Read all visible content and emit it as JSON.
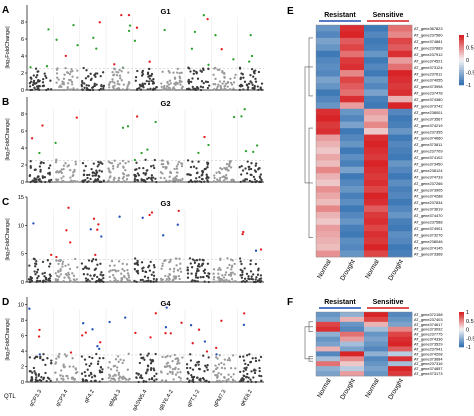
{
  "panels_left": [
    {
      "letter": "A",
      "group": "G1",
      "ylabel": "|log₂FoldChange|",
      "ymax": 10,
      "ticks": [
        0,
        2,
        4,
        6,
        8
      ],
      "seed": 11,
      "thresh": 2.5,
      "tall_mode": "green"
    },
    {
      "letter": "B",
      "group": "G2",
      "ylabel": "|log₂FoldChange|",
      "ymax": 10,
      "ticks": [
        0,
        2,
        4,
        6,
        8
      ],
      "seed": 23,
      "thresh": 2.5,
      "tall_mode": "green"
    },
    {
      "letter": "C",
      "group": "G3",
      "ylabel": "|log₂FoldChange|",
      "ymax": 15,
      "ticks": [
        0,
        5,
        10,
        15
      ],
      "seed": 37,
      "thresh": 4,
      "tall_mode": "blue"
    },
    {
      "letter": "D",
      "group": "G4",
      "ylabel": "|log₂FoldChange|",
      "ymax": 11,
      "ticks": [
        0,
        2,
        4,
        6,
        8,
        10
      ],
      "seed": 51,
      "thresh": 3.5,
      "tall_mode": "blue"
    }
  ],
  "qtl_axis_label": "QTL",
  "qtls": [
    "qCP3.3",
    "qCP3.4",
    "qF4.2",
    "qMg4.3",
    "qASW5.4",
    "qBY6.4-2",
    "qPT.1-2",
    "qPM7.3",
    "qKE8.2"
  ],
  "colors": {
    "dark_point": "#3a3a3a",
    "light_point": "#9a9a9a",
    "green": "#2ca02c",
    "red": "#e41a1c",
    "blue": "#1f4fb5",
    "heat_low": "#2b6cb0",
    "heat_mid": "#f4f4f4",
    "heat_high": "#d7191c",
    "resistant_bar": "#1f4fb5",
    "sensitive_bar": "#d7191c"
  },
  "heatmap_E": {
    "letter": "E",
    "group_labels": [
      "Resistant",
      "Sensitive"
    ],
    "col_labels": [
      "Normal",
      "Drought",
      "Normal",
      "Drought"
    ],
    "scale_ticks": [
      "1",
      "0.5",
      "0",
      "-0.5",
      "-1"
    ],
    "rows": [
      {
        "id": "AT_gene367823",
        "v": [
          -0.7,
          0.9,
          -0.9,
          0.6
        ]
      },
      {
        "id": "AT_gene237560",
        "v": [
          -0.8,
          0.95,
          -0.8,
          0.5
        ]
      },
      {
        "id": "AT_gene374881",
        "v": [
          -0.6,
          0.7,
          -0.9,
          0.8
        ]
      },
      {
        "id": "AT_gene237889",
        "v": [
          -0.7,
          0.8,
          -0.85,
          0.7
        ]
      },
      {
        "id": "AT_gene237912",
        "v": [
          -0.9,
          0.6,
          -0.7,
          0.9
        ]
      },
      {
        "id": "AT_gene374521",
        "v": [
          -0.8,
          0.85,
          -0.9,
          0.4
        ]
      },
      {
        "id": "AT_gene373124",
        "v": [
          -0.75,
          0.9,
          -0.8,
          0.6
        ]
      },
      {
        "id": "AT_gene237611",
        "v": [
          -0.8,
          0.5,
          -0.9,
          0.95
        ]
      },
      {
        "id": "AT_gene374055",
        "v": [
          -0.6,
          0.8,
          -0.7,
          0.9
        ]
      },
      {
        "id": "AT_gene373998",
        "v": [
          -0.7,
          0.7,
          -0.8,
          0.85
        ]
      },
      {
        "id": "AT_gene237478",
        "v": [
          -0.9,
          0.6,
          -0.6,
          0.9
        ]
      },
      {
        "id": "AT_gene374380",
        "v": [
          -0.8,
          0.9,
          -0.85,
          0.3
        ]
      },
      {
        "id": "AT_gene373742",
        "v": [
          -0.7,
          0.4,
          -0.9,
          0.95
        ]
      },
      {
        "id": "AT_gene238001",
        "v": [
          0.9,
          -0.7,
          0.4,
          -0.8
        ]
      },
      {
        "id": "AT_gene373567",
        "v": [
          0.95,
          -0.8,
          0.3,
          -0.9
        ]
      },
      {
        "id": "AT_gene374219",
        "v": [
          0.85,
          -0.6,
          0.5,
          -0.85
        ]
      },
      {
        "id": "AT_gene237355",
        "v": [
          0.9,
          -0.9,
          0.2,
          -0.7
        ]
      },
      {
        "id": "AT_gene374660",
        "v": [
          0.4,
          -0.8,
          0.9,
          -0.9
        ]
      },
      {
        "id": "AT_gene373811",
        "v": [
          0.3,
          -0.7,
          0.95,
          -0.8
        ]
      },
      {
        "id": "AT_gene237709",
        "v": [
          0.2,
          -0.9,
          0.9,
          -0.85
        ]
      },
      {
        "id": "AT_gene374102",
        "v": [
          0.35,
          -0.75,
          0.85,
          -0.9
        ]
      },
      {
        "id": "AT_gene373450",
        "v": [
          0.25,
          -0.85,
          0.95,
          -0.7
        ]
      },
      {
        "id": "AT_gene238124",
        "v": [
          0.5,
          -0.6,
          0.9,
          -0.8
        ]
      },
      {
        "id": "AT_gene374733",
        "v": [
          0.3,
          -0.9,
          0.85,
          -0.9
        ]
      },
      {
        "id": "AT_gene237266",
        "v": [
          0.2,
          -0.8,
          0.9,
          -0.75
        ]
      },
      {
        "id": "AT_gene373905",
        "v": [
          0.45,
          -0.7,
          0.8,
          -0.85
        ]
      },
      {
        "id": "AT_gene374288",
        "v": [
          0.35,
          -0.85,
          0.95,
          -0.8
        ]
      },
      {
        "id": "AT_gene237834",
        "v": [
          0.25,
          -0.75,
          0.9,
          -0.9
        ]
      },
      {
        "id": "AT_gene373619",
        "v": [
          0.5,
          -0.9,
          0.7,
          -0.8
        ]
      },
      {
        "id": "AT_gene374470",
        "v": [
          0.3,
          -0.8,
          0.85,
          -0.7
        ]
      },
      {
        "id": "AT_gene237588",
        "v": [
          0.2,
          -0.7,
          0.9,
          -0.85
        ]
      },
      {
        "id": "AT_gene374901",
        "v": [
          0.4,
          -0.85,
          0.8,
          -0.9
        ]
      },
      {
        "id": "AT_gene373276",
        "v": [
          0.35,
          -0.9,
          0.9,
          -0.75
        ]
      },
      {
        "id": "AT_gene238046",
        "v": [
          0.3,
          -0.75,
          0.85,
          -0.8
        ]
      },
      {
        "id": "AT_gene374145",
        "v": [
          0.25,
          -0.8,
          0.95,
          -0.9
        ]
      },
      {
        "id": "AT_gene373368",
        "v": [
          0.45,
          -0.7,
          0.8,
          -0.85
        ]
      }
    ]
  },
  "heatmap_F": {
    "letter": "F",
    "group_labels": [
      "Resistant",
      "Sensitive"
    ],
    "col_labels": [
      "Normal",
      "Drought",
      "Normal",
      "Drought"
    ],
    "scale_ticks": [
      "1",
      "0.5",
      "0",
      "-0.5",
      "-1"
    ],
    "rows": [
      {
        "id": "AT_gene372158",
        "v": [
          -0.7,
          -0.5,
          0.95,
          -0.8
        ]
      },
      {
        "id": "AT_gene237403",
        "v": [
          -0.6,
          0.3,
          0.8,
          -0.7
        ]
      },
      {
        "id": "AT_gene374617",
        "v": [
          0.8,
          -0.7,
          0.3,
          -0.6
        ]
      },
      {
        "id": "AT_gene373092",
        "v": [
          0.9,
          -0.8,
          -0.4,
          0.5
        ]
      },
      {
        "id": "AT_gene237775",
        "v": [
          -0.5,
          0.6,
          -0.7,
          0.8
        ]
      },
      {
        "id": "AT_gene374336",
        "v": [
          -0.7,
          0.4,
          -0.6,
          0.9
        ]
      },
      {
        "id": "AT_gene373529",
        "v": [
          -0.6,
          -0.4,
          -0.7,
          0.95
        ]
      },
      {
        "id": "AT_gene237941",
        "v": [
          0.3,
          -0.6,
          -0.8,
          0.7
        ]
      },
      {
        "id": "AT_gene374208",
        "v": [
          -0.8,
          0.95,
          -0.5,
          -0.3
        ]
      },
      {
        "id": "AT_gene373684",
        "v": [
          -0.4,
          0.5,
          -0.8,
          0.9
        ]
      },
      {
        "id": "AT_gene237316",
        "v": [
          0.6,
          0.2,
          -0.7,
          -0.4
        ]
      },
      {
        "id": "AT_gene374857",
        "v": [
          -0.5,
          -0.3,
          -0.6,
          0.95
        ]
      },
      {
        "id": "AT_gene373173",
        "v": [
          -0.6,
          0.4,
          -0.7,
          0.85
        ]
      }
    ]
  }
}
